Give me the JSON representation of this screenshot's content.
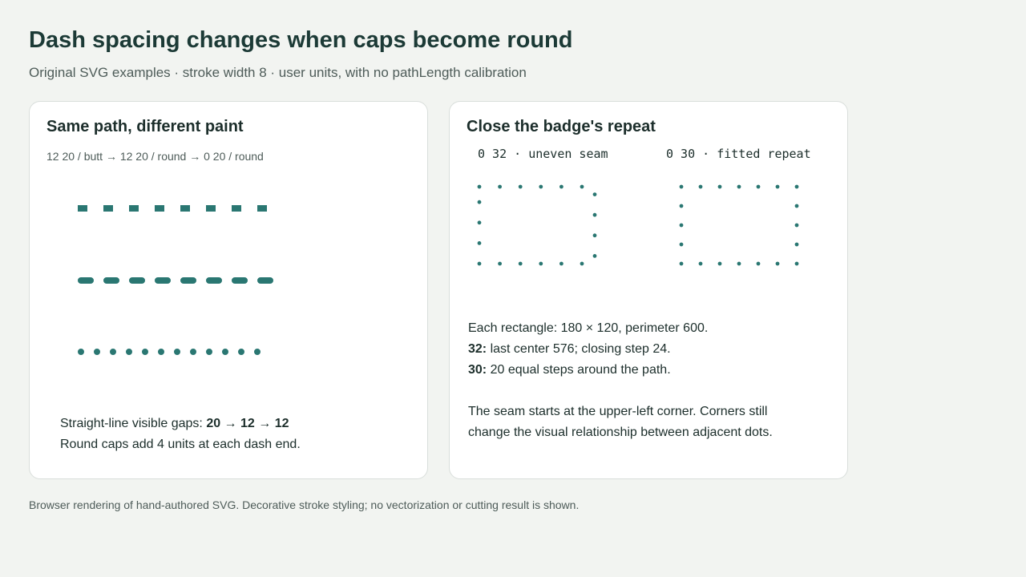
{
  "header": {
    "title": "Dash spacing changes when caps become round",
    "subtitle": "Original SVG examples · stroke width 8 · user units, with no pathLength calibration"
  },
  "left_panel": {
    "title": "Same path, different paint",
    "caption": "12 20 / butt → 12 20 / round → 0 20 / round",
    "lines": [
      {
        "dash": 12,
        "gap": 20,
        "cap": "butt",
        "color": "#2a7772"
      },
      {
        "dash": 12,
        "gap": 20,
        "cap": "round",
        "color": "#2a7772"
      },
      {
        "dash": 0,
        "gap": 20,
        "cap": "round",
        "color": "#2a7772"
      }
    ],
    "note_line1_prefix": "Straight-line visible gaps: ",
    "note_line1_values": "20 → 12 → 12",
    "note_line2": "Round caps add 4 units at each dash end."
  },
  "right_panel": {
    "title": "Close the badge's repeat",
    "label_a": "0 32 · uneven seam",
    "label_b": "0 30 · fitted repeat",
    "rect_a": {
      "width": 180,
      "height": 120,
      "dash": 0,
      "gap": 32
    },
    "rect_b": {
      "width": 180,
      "height": 120,
      "dash": 0,
      "gap": 30
    },
    "dot_color": "#2a7772",
    "note_line1": "Each rectangle: 180 × 120, perimeter 600.",
    "note_line2_key": "32:",
    "note_line2_rest": " last center 576; closing step 24.",
    "note_line3_key": "30:",
    "note_line3_rest": " 20 equal steps around the path.",
    "note_para2_line1": "The seam starts at the upper-left corner. Corners still",
    "note_para2_line2": "change the visual relationship between adjacent dots."
  },
  "footer": "Browser rendering of hand-authored SVG. Decorative stroke styling; no vectorization or cutting result is shown."
}
